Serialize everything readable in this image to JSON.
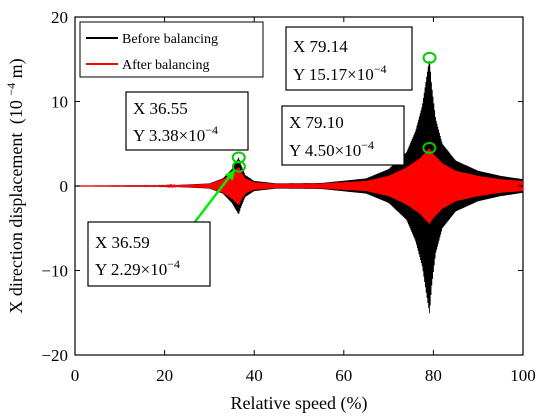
{
  "chart_data": {
    "type": "line",
    "xlabel": "Relative speed (%)",
    "ylabel": "X direction displacement",
    "ylabel_unit": "(10",
    "ylabel_exp": "−4",
    "ylabel_unit_end": "m)",
    "xlim": [
      0,
      100
    ],
    "ylim": [
      -20,
      20
    ],
    "xticks": [
      0,
      20,
      40,
      60,
      80,
      100
    ],
    "yticks": [
      -20,
      -10,
      0,
      10,
      20
    ],
    "grid": false,
    "legend_position": "top-left",
    "series": [
      {
        "name": "Before balancing",
        "color": "#000000",
        "envelope": [
          [
            0,
            0.02
          ],
          [
            20,
            0.05
          ],
          [
            30,
            0.3
          ],
          [
            33,
            0.9
          ],
          [
            35,
            2.0
          ],
          [
            36,
            2.9
          ],
          [
            36.55,
            3.38
          ],
          [
            37,
            2.6
          ],
          [
            38,
            1.3
          ],
          [
            40,
            0.6
          ],
          [
            45,
            0.3
          ],
          [
            55,
            0.35
          ],
          [
            65,
            0.9
          ],
          [
            70,
            2.0
          ],
          [
            74,
            4.0
          ],
          [
            76,
            6.5
          ],
          [
            77.5,
            9.5
          ],
          [
            78.5,
            13.0
          ],
          [
            79.14,
            15.17
          ],
          [
            79.6,
            12.0
          ],
          [
            80.5,
            8.0
          ],
          [
            82,
            5.0
          ],
          [
            85,
            3.0
          ],
          [
            90,
            1.8
          ],
          [
            95,
            1.2
          ],
          [
            100,
            0.8
          ]
        ]
      },
      {
        "name": "After balancing",
        "color": "#ff0000",
        "envelope": [
          [
            0,
            0.02
          ],
          [
            20,
            0.04
          ],
          [
            30,
            0.25
          ],
          [
            33,
            0.8
          ],
          [
            35,
            1.5
          ],
          [
            36,
            2.0
          ],
          [
            36.59,
            2.29
          ],
          [
            37,
            1.8
          ],
          [
            38,
            0.9
          ],
          [
            40,
            0.45
          ],
          [
            45,
            0.25
          ],
          [
            55,
            0.3
          ],
          [
            65,
            0.6
          ],
          [
            70,
            1.2
          ],
          [
            74,
            2.2
          ],
          [
            77,
            3.3
          ],
          [
            79.1,
            4.5
          ],
          [
            80,
            3.8
          ],
          [
            82,
            2.7
          ],
          [
            85,
            1.8
          ],
          [
            90,
            1.2
          ],
          [
            95,
            0.8
          ],
          [
            100,
            0.6
          ]
        ]
      }
    ],
    "annotations": [
      {
        "x": 36.55,
        "y": 3.38,
        "line1": "X 36.55",
        "line2_prefix": "Y 3.38×10",
        "line2_exp": "−4",
        "marker_color": "#00cc00"
      },
      {
        "x": 36.59,
        "y": 2.29,
        "line1": "X 36.59",
        "line2_prefix": "Y 2.29×10",
        "line2_exp": "−4",
        "marker_color": "#00cc00",
        "arrow_color": "#00ee00"
      },
      {
        "x": 79.14,
        "y": 15.17,
        "line1": "X 79.14",
        "line2_prefix": "Y 15.17×10",
        "line2_exp": "−4",
        "marker_color": "#00cc00"
      },
      {
        "x": 79.1,
        "y": 4.5,
        "line1": "X 79.10",
        "line2_prefix": "Y 4.50×10",
        "line2_exp": "−4",
        "marker_color": "#00cc00"
      }
    ]
  }
}
